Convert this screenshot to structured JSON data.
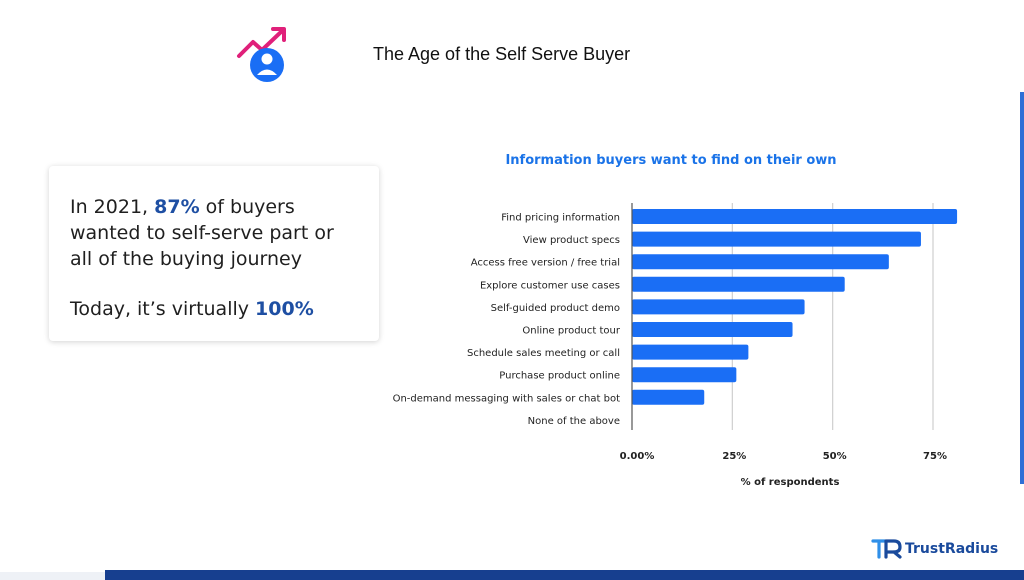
{
  "slide": {
    "title": "The Age of the Self Serve Buyer"
  },
  "callout": {
    "line1_pre": "In 2021, ",
    "line1_highlight": "87%",
    "line1_post": " of buyers wanted to self-serve part or all of the buying journey",
    "line2_pre": "Today, it’s virtually ",
    "line2_highlight": "100%",
    "highlight_color": "#1e4fa3"
  },
  "brand": {
    "name": "TrustRadius",
    "color": "#1a4a9c"
  },
  "chart_data": {
    "type": "bar",
    "orientation": "horizontal",
    "title": "Information buyers want to find on their own",
    "xlabel": "% of respondents",
    "ylabel": "",
    "categories": [
      "Find pricing information",
      "View product specs",
      "Access free version / free trial",
      "Explore customer use cases",
      "Self-guided product demo",
      "Online product tour",
      "Schedule sales meeting or call",
      "Purchase product online",
      "On-demand messaging with sales or chat bot",
      "None of the above"
    ],
    "values": [
      81,
      72,
      64,
      53,
      43,
      40,
      29,
      26,
      18,
      0
    ],
    "xlim": [
      0,
      80
    ],
    "xticks": [
      0,
      25,
      50,
      75
    ],
    "xtick_labels": [
      "0.00%",
      "25%",
      "50%",
      "75%"
    ],
    "grid": true,
    "bar_color": "#1a6ef5",
    "title_color": "#1a73e8"
  }
}
